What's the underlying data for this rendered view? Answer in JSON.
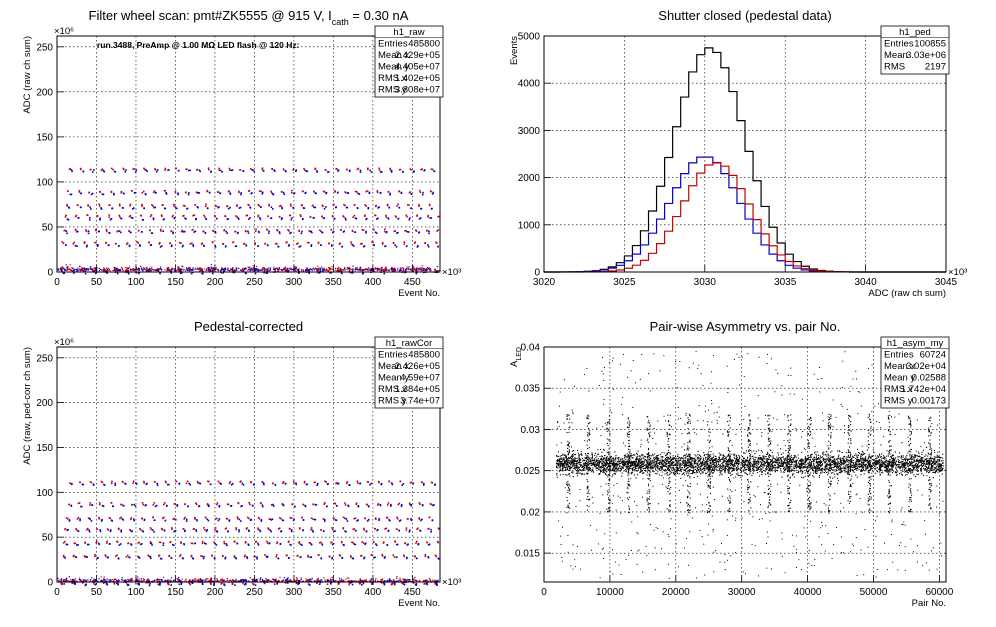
{
  "window": {
    "title": "Filter wheel scan / pedestal / asymmetry panels"
  },
  "chart_data": [
    {
      "id": "raw",
      "type": "scatter",
      "title": "Filter wheel scan: pmt#ZK5555 @   915 V, I",
      "title_sub": "cath",
      "title_tail": " = 0.30 nA",
      "annotation": "run.3488, PreAmp @ 1.00 MΩ LED flash @  120 Hz:",
      "xlabel": "Event No.",
      "ylabel": "ADC (raw ch sum)",
      "x_exponent": "×10³",
      "y_exponent": "×10⁶",
      "xlim": [
        0,
        485
      ],
      "ylim": [
        0,
        262
      ],
      "xticks": [
        0,
        50,
        100,
        150,
        200,
        250,
        300,
        350,
        400,
        450
      ],
      "yticks": [
        0,
        50,
        100,
        150,
        200,
        250
      ],
      "grid": true,
      "stats": {
        "name": "h1_raw",
        "rows": [
          [
            "Entries",
            "485800"
          ],
          [
            "Mean x",
            "2.429e+05"
          ],
          [
            "Mean y",
            "4.405e+07"
          ],
          [
            "RMS x",
            "1.402e+05"
          ],
          [
            "RMS y",
            "3.808e+07"
          ]
        ]
      },
      "series": [
        {
          "color": "#cc0000",
          "levels": [
            3,
            33,
            47,
            63,
            75,
            90,
            115
          ]
        },
        {
          "color": "#0000cc",
          "levels": [
            2,
            30,
            45,
            60,
            72,
            88,
            113
          ]
        }
      ]
    },
    {
      "id": "ped",
      "type": "histogram",
      "title": "Shutter closed (pedestal data)",
      "xlabel": "ADC (raw ch sum)",
      "ylabel": "Events",
      "x_exponent": "×10³",
      "xlim": [
        3020,
        3045
      ],
      "ylim": [
        0,
        5000
      ],
      "xticks": [
        3020,
        3025,
        3030,
        3035,
        3040,
        3045
      ],
      "yticks": [
        0,
        1000,
        2000,
        3000,
        4000,
        5000
      ],
      "grid": true,
      "stats": {
        "name": "h1_ped",
        "rows": [
          [
            "Entries",
            "100855"
          ],
          [
            "Mean",
            "3.03e+06"
          ],
          [
            "RMS",
            "2197"
          ]
        ]
      },
      "series": [
        {
          "color": "#000000",
          "peak": 4750,
          "mean": 3030.3,
          "sigma": 2.2
        },
        {
          "color": "#0000cc",
          "peak": 2450,
          "mean": 3030.0,
          "sigma": 2.2
        },
        {
          "color": "#cc0000",
          "peak": 2320,
          "mean": 3030.7,
          "sigma": 2.1
        }
      ]
    },
    {
      "id": "rawCor",
      "type": "scatter",
      "title": "Pedestal-corrected",
      "xlabel": "Event No.",
      "ylabel": "ADC (raw, ped-corr ch sum)",
      "x_exponent": "×10³",
      "y_exponent": "×10⁶",
      "xlim": [
        0,
        485
      ],
      "ylim": [
        0,
        262
      ],
      "xticks": [
        0,
        50,
        100,
        150,
        200,
        250,
        300,
        350,
        400,
        450
      ],
      "yticks": [
        0,
        50,
        100,
        150,
        200,
        250
      ],
      "grid": true,
      "stats": {
        "name": "h1_rawCor",
        "rows": [
          [
            "Entries",
            "485800"
          ],
          [
            "Mean x",
            "2.426e+05"
          ],
          [
            "Mean y",
            "4.59e+07"
          ],
          [
            "RMS x",
            "1.384e+05"
          ],
          [
            "RMS y",
            "3.74e+07"
          ]
        ]
      },
      "series": [
        {
          "color": "#cc0000",
          "levels": [
            1,
            30,
            45,
            60,
            72,
            88,
            112
          ]
        },
        {
          "color": "#0000cc",
          "levels": [
            0,
            28,
            43,
            58,
            70,
            86,
            110
          ]
        }
      ]
    },
    {
      "id": "asym",
      "type": "scatter",
      "title": "Pair-wise Asymmetry vs. pair No.",
      "xlabel": "Pair No.",
      "ylabel": "A",
      "ylabel_sub": "LED",
      "xlim": [
        0,
        61000
      ],
      "ylim": [
        0.0115,
        0.04
      ],
      "xticks": [
        0,
        10000,
        20000,
        30000,
        40000,
        50000,
        60000
      ],
      "yticks": [
        0.015,
        0.02,
        0.025,
        0.03,
        0.035,
        0.04
      ],
      "grid": true,
      "stats": {
        "name": "h1_asym_my",
        "rows": [
          [
            "Entries",
            "60724"
          ],
          [
            "Mean x",
            "3.02e+04"
          ],
          [
            "Mean y",
            "0.02588"
          ],
          [
            "RMS x",
            "1.742e+04"
          ],
          [
            "RMS y",
            "0.00173"
          ]
        ]
      },
      "series": [
        {
          "color": "#000000",
          "center": 0.0259,
          "spread": 0.0006
        }
      ]
    }
  ]
}
